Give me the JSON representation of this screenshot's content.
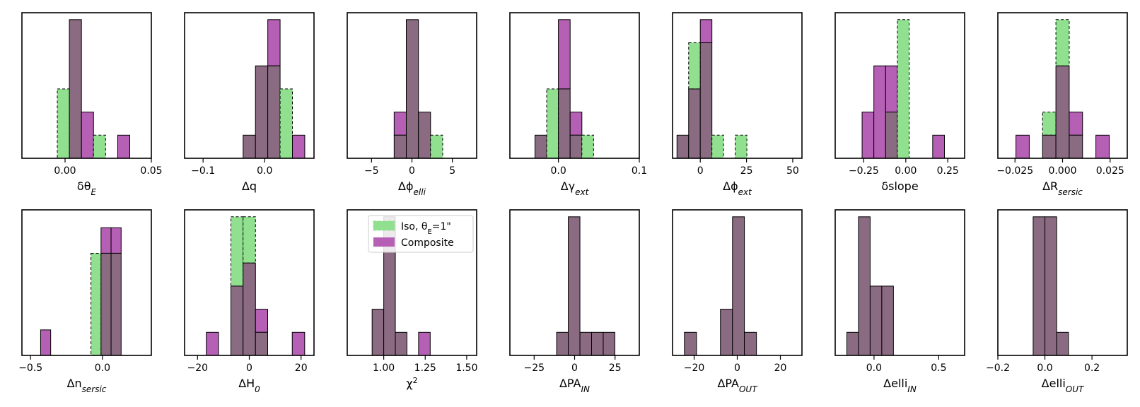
{
  "chart_data": {
    "type": "histogram-grid",
    "series": [
      {
        "name": "Iso, θE=1\"",
        "color": "#90e090",
        "edge": "dashed"
      },
      {
        "name": "Composite",
        "color": "#b560b5",
        "edge": "solid"
      }
    ],
    "overlap_color": "#8a6b82",
    "legend": {
      "location": "upper-right",
      "panel": "chi2",
      "entries": [
        "Iso, θ",
        "E",
        "=1\"",
        "Composite"
      ]
    },
    "panels": [
      {
        "id": "theta_e",
        "xlabel": "δθ",
        "xsub": "E",
        "xlim": [
          -0.025,
          0.05
        ],
        "ymax": 6.3,
        "ticks": [
          {
            "v": 0.0,
            "t": "0.00"
          },
          {
            "v": 0.05,
            "t": "0.05"
          }
        ],
        "edges": [
          -0.0045,
          0.0025,
          0.0095,
          0.0165,
          0.0235,
          0.0305,
          0.0375
        ],
        "iso": [
          3,
          6,
          0,
          1,
          0,
          0
        ],
        "comp": [
          0,
          6,
          2,
          0,
          0,
          1
        ]
      },
      {
        "id": "q",
        "xlabel": "Δq",
        "xsub": "",
        "xlim": [
          -0.13,
          0.08
        ],
        "ymax": 6.3,
        "ticks": [
          {
            "v": -0.1,
            "t": "−0.1"
          },
          {
            "v": 0.0,
            "t": "0.0"
          }
        ],
        "edges": [
          -0.035,
          -0.015,
          0.005,
          0.025,
          0.045,
          0.065
        ],
        "iso": [
          1,
          4,
          4,
          3,
          0
        ],
        "comp": [
          1,
          4,
          6,
          0,
          1
        ]
      },
      {
        "id": "phi_elli",
        "xlabel": "Δϕ",
        "xsub": "elli",
        "xlim": [
          -8,
          8
        ],
        "ymax": 6.3,
        "ticks": [
          {
            "v": -5,
            "t": "−5"
          },
          {
            "v": 0,
            "t": "0"
          },
          {
            "v": 5,
            "t": "5"
          }
        ],
        "edges": [
          -2.2,
          -0.7,
          0.8,
          2.3,
          3.8
        ],
        "iso": [
          1,
          6,
          2,
          1
        ],
        "comp": [
          2,
          6,
          2,
          0
        ]
      },
      {
        "id": "gamma_ext",
        "xlabel": "Δγ",
        "xsub": "ext",
        "xlim": [
          -0.06,
          0.1
        ],
        "ymax": 6.3,
        "ticks": [
          {
            "v": 0.0,
            "t": "0.0"
          },
          {
            "v": 0.1,
            "t": "0.1"
          }
        ],
        "edges": [
          -0.029,
          -0.0145,
          0.0,
          0.0145,
          0.029,
          0.0435
        ],
        "iso": [
          1,
          3,
          3,
          1,
          1
        ],
        "comp": [
          1,
          0,
          6,
          2,
          0
        ]
      },
      {
        "id": "phi_ext",
        "xlabel": "Δϕ",
        "xsub": "ext",
        "xlim": [
          -15,
          55
        ],
        "ymax": 6.3,
        "ticks": [
          {
            "v": 0,
            "t": "0"
          },
          {
            "v": 25,
            "t": "25"
          },
          {
            "v": 50,
            "t": "50"
          }
        ],
        "edges": [
          -12.6,
          -6.3,
          0.0,
          6.3,
          12.6,
          18.9,
          25.2
        ],
        "iso": [
          1,
          5,
          5,
          1,
          0,
          1
        ],
        "comp": [
          1,
          3,
          6,
          0,
          0,
          0
        ]
      },
      {
        "id": "slope",
        "xlabel": "δslope",
        "xsub": "",
        "xlim": [
          -0.42,
          0.35
        ],
        "ymax": 6.3,
        "ticks": [
          {
            "v": -0.25,
            "t": "−0.25"
          },
          {
            "v": 0.0,
            "t": "0.00"
          },
          {
            "v": 0.25,
            "t": "0.25"
          }
        ],
        "edges": [
          -0.33,
          -0.26,
          -0.19,
          -0.12,
          -0.05,
          0.02,
          0.09,
          0.16,
          0.23
        ],
        "iso": [
          0,
          0,
          0,
          2,
          6,
          0,
          0,
          0
        ],
        "comp": [
          0,
          2,
          4,
          4,
          0,
          0,
          0,
          1
        ]
      },
      {
        "id": "r_sersic",
        "xlabel": "ΔR",
        "xsub": "sersic",
        "xlim": [
          -0.034,
          0.034
        ],
        "ymax": 6.3,
        "ticks": [
          {
            "v": -0.025,
            "t": "−0.025"
          },
          {
            "v": 0.0,
            "t": "0.000"
          },
          {
            "v": 0.025,
            "t": "0.025"
          }
        ],
        "edges": [
          -0.0245,
          -0.0175,
          -0.0105,
          -0.0035,
          0.0035,
          0.0105,
          0.0175,
          0.0245
        ],
        "iso": [
          0,
          0,
          2,
          6,
          1,
          0,
          0
        ],
        "comp": [
          1,
          0,
          1,
          4,
          2,
          0,
          1
        ]
      },
      {
        "id": "n_sersic",
        "xlabel": "Δn",
        "xsub": "sersic",
        "xlim": [
          -0.56,
          0.34
        ],
        "ymax": 5.7,
        "ticks": [
          {
            "v": -0.5,
            "t": "−0.5"
          },
          {
            "v": 0.0,
            "t": "0.0"
          }
        ],
        "edges": [
          -0.43,
          -0.36,
          -0.29,
          -0.22,
          -0.15,
          -0.08,
          -0.01,
          0.06,
          0.13
        ],
        "iso": [
          0,
          0,
          0,
          0,
          0,
          4,
          4,
          4
        ],
        "comp": [
          1,
          0,
          0,
          0,
          0,
          0,
          5,
          5
        ]
      },
      {
        "id": "h0",
        "xlabel": "ΔH",
        "xsub": "0",
        "xlim": [
          -25,
          25
        ],
        "ymax": 6.3,
        "ticks": [
          {
            "v": -20,
            "t": "−20"
          },
          {
            "v": 0,
            "t": "0"
          },
          {
            "v": 20,
            "t": "20"
          }
        ],
        "edges": [
          -16.6,
          -11.9,
          -7.1,
          -2.4,
          2.4,
          7.1,
          11.9,
          16.6,
          21.4
        ],
        "iso": [
          0,
          0,
          6,
          6,
          1,
          0,
          0,
          0
        ],
        "comp": [
          1,
          0,
          3,
          4,
          2,
          0,
          0,
          1
        ]
      },
      {
        "id": "chi2",
        "xlabel": "χ",
        "xsub": "",
        "xsup": "2",
        "xlim": [
          0.78,
          1.56
        ],
        "ymax": 6.3,
        "ticks": [
          {
            "v": 1.0,
            "t": "1.00"
          },
          {
            "v": 1.25,
            "t": "1.25"
          },
          {
            "v": 1.5,
            "t": "1.50"
          }
        ],
        "edges": [
          0.93,
          1.0,
          1.07,
          1.14,
          1.21,
          1.28
        ],
        "iso": [
          2,
          6,
          1,
          0,
          0
        ],
        "comp": [
          2,
          6,
          1,
          0,
          1
        ]
      },
      {
        "id": "pa_in",
        "xlabel": "ΔPA",
        "xsub": "IN",
        "xlim": [
          -40,
          40
        ],
        "ymax": 6.3,
        "ticks": [
          {
            "v": -25,
            "t": "−25"
          },
          {
            "v": 0,
            "t": "0"
          },
          {
            "v": 25,
            "t": "25"
          }
        ],
        "edges": [
          -11.1,
          -3.9,
          3.3,
          10.5,
          17.7,
          24.9
        ],
        "iso": [
          1,
          6,
          1,
          1,
          1
        ],
        "comp": [
          1,
          6,
          1,
          1,
          1
        ]
      },
      {
        "id": "pa_out",
        "xlabel": "ΔPA",
        "xsub": "OUT",
        "xlim": [
          -30,
          30
        ],
        "ymax": 6.3,
        "ticks": [
          {
            "v": -20,
            "t": "−20"
          },
          {
            "v": 0,
            "t": "0"
          },
          {
            "v": 20,
            "t": "20"
          }
        ],
        "edges": [
          -24.5,
          -18.9,
          -13.3,
          -7.8,
          -2.2,
          3.3,
          8.9
        ],
        "iso": [
          1,
          0,
          0,
          2,
          6,
          1
        ],
        "comp": [
          1,
          0,
          0,
          2,
          6,
          1
        ]
      },
      {
        "id": "elli_in",
        "xlabel": "Δelli",
        "xsub": "IN",
        "xlim": [
          -0.3,
          0.7
        ],
        "ymax": 6.3,
        "ticks": [
          {
            "v": 0.0,
            "t": "0.0"
          },
          {
            "v": 0.5,
            "t": "0.5"
          }
        ],
        "edges": [
          -0.21,
          -0.12,
          -0.03,
          0.06,
          0.15
        ],
        "iso": [
          1,
          6,
          3,
          3
        ],
        "comp": [
          1,
          6,
          3,
          3
        ]
      },
      {
        "id": "elli_out",
        "xlabel": "Δelli",
        "xsub": "OUT",
        "xlim": [
          -0.2,
          0.35
        ],
        "ymax": 6.3,
        "ticks": [
          {
            "v": -0.2,
            "t": "−0.2"
          },
          {
            "v": 0.0,
            "t": "0.0"
          },
          {
            "v": 0.2,
            "t": "0.2"
          }
        ],
        "edges": [
          -0.05,
          0.0,
          0.05,
          0.1
        ],
        "iso": [
          6,
          6,
          1
        ],
        "comp": [
          6,
          6,
          1
        ]
      }
    ]
  }
}
